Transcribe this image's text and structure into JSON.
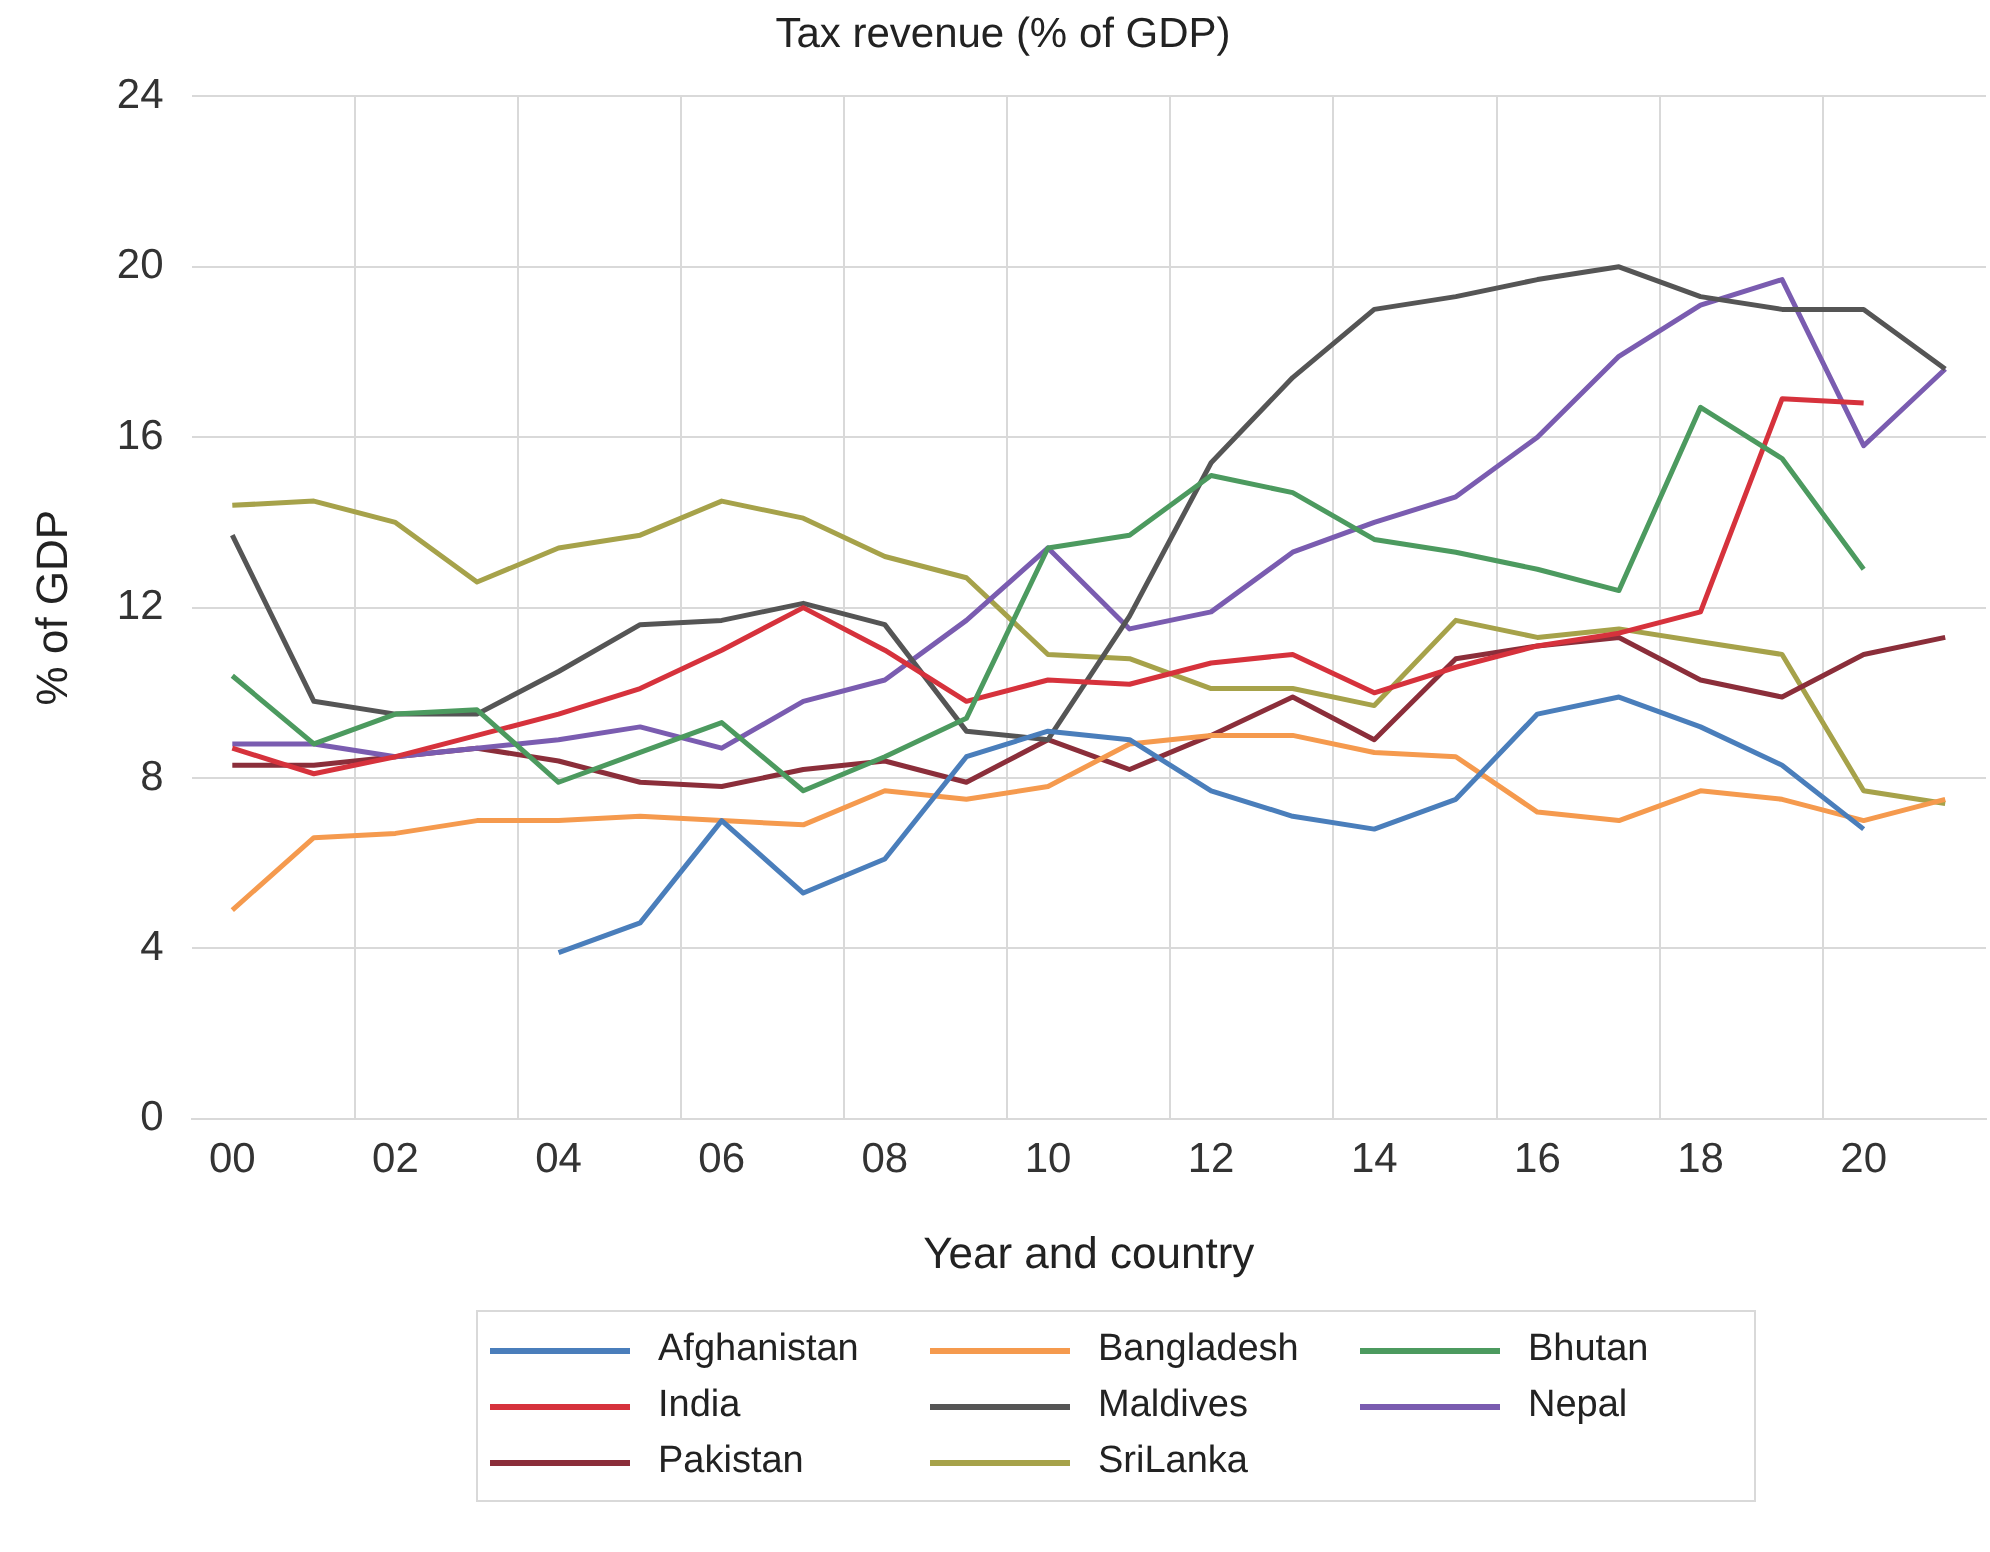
{
  "chart_data": {
    "type": "line",
    "title": "Tax revenue (% of GDP)",
    "xlabel": "Year and country",
    "ylabel": "% of GDP",
    "categories": [
      "00",
      null,
      "02",
      null,
      "04",
      null,
      "06",
      null,
      "08",
      null,
      "10",
      null,
      "12",
      null,
      "14",
      null,
      "16",
      null,
      "18",
      null,
      "20",
      null
    ],
    "ylim": [
      0,
      24
    ],
    "yticks": [
      0,
      4,
      8,
      12,
      16,
      20,
      24
    ],
    "grid": true,
    "legend": "bottom",
    "marker": "none",
    "line_style": "solid",
    "series": [
      {
        "name": "Afghanistan",
        "color": "#4a7ebb",
        "values": [
          null,
          null,
          null,
          null,
          3.9,
          4.6,
          7.0,
          5.3,
          6.1,
          8.5,
          9.1,
          8.9,
          7.7,
          7.1,
          6.8,
          7.5,
          9.5,
          9.9,
          9.2,
          8.3,
          6.8,
          null
        ]
      },
      {
        "name": "Bangladesh",
        "color": "#f59a4e",
        "values": [
          4.9,
          6.6,
          6.7,
          7.0,
          7.0,
          7.1,
          7.0,
          6.9,
          7.7,
          7.5,
          7.8,
          8.8,
          9.0,
          9.0,
          8.6,
          8.5,
          7.2,
          7.0,
          7.7,
          7.5,
          7.0,
          7.5
        ]
      },
      {
        "name": "Bhutan",
        "color": "#4c9a5f",
        "values": [
          10.4,
          8.8,
          9.5,
          9.6,
          7.9,
          8.6,
          9.3,
          7.7,
          8.5,
          9.4,
          13.4,
          13.7,
          15.1,
          14.7,
          13.6,
          13.3,
          12.9,
          12.4,
          16.7,
          15.5,
          12.9,
          null
        ]
      },
      {
        "name": "India",
        "color": "#d6323c",
        "values": [
          8.7,
          8.1,
          8.5,
          9.0,
          9.5,
          10.1,
          11.0,
          12.0,
          11.0,
          9.8,
          10.3,
          10.2,
          10.7,
          10.9,
          10.0,
          10.6,
          11.1,
          11.4,
          11.9,
          16.9,
          16.8,
          null
        ]
      },
      {
        "name": "Maldives",
        "color": "#555555",
        "values": [
          13.7,
          9.8,
          9.5,
          9.5,
          10.5,
          11.6,
          11.7,
          12.1,
          11.6,
          9.1,
          8.9,
          11.8,
          15.4,
          17.4,
          19.0,
          19.3,
          19.7,
          20.0,
          19.3,
          19.0,
          19.0,
          17.6
        ]
      },
      {
        "name": "Nepal",
        "color": "#7a5cb0",
        "values": [
          8.8,
          8.8,
          8.5,
          8.7,
          8.9,
          9.2,
          8.7,
          9.8,
          10.3,
          11.7,
          13.4,
          11.5,
          11.9,
          13.3,
          14.0,
          14.6,
          16.0,
          17.9,
          19.1,
          19.7,
          15.8,
          17.6
        ]
      },
      {
        "name": "Pakistan",
        "color": "#8b2e3a",
        "values": [
          8.3,
          8.3,
          8.5,
          8.7,
          8.4,
          7.9,
          7.8,
          8.2,
          8.4,
          7.9,
          8.9,
          8.2,
          9.0,
          9.9,
          8.9,
          10.8,
          11.1,
          11.3,
          10.3,
          9.9,
          10.9,
          11.3
        ]
      },
      {
        "name": "SriLanka",
        "color": "#a6a24a",
        "values": [
          14.4,
          14.5,
          14.0,
          12.6,
          13.4,
          13.7,
          14.5,
          14.1,
          13.2,
          12.7,
          10.9,
          10.8,
          10.1,
          10.1,
          9.7,
          11.7,
          11.3,
          11.5,
          11.2,
          10.9,
          7.7,
          7.4
        ]
      }
    ]
  }
}
